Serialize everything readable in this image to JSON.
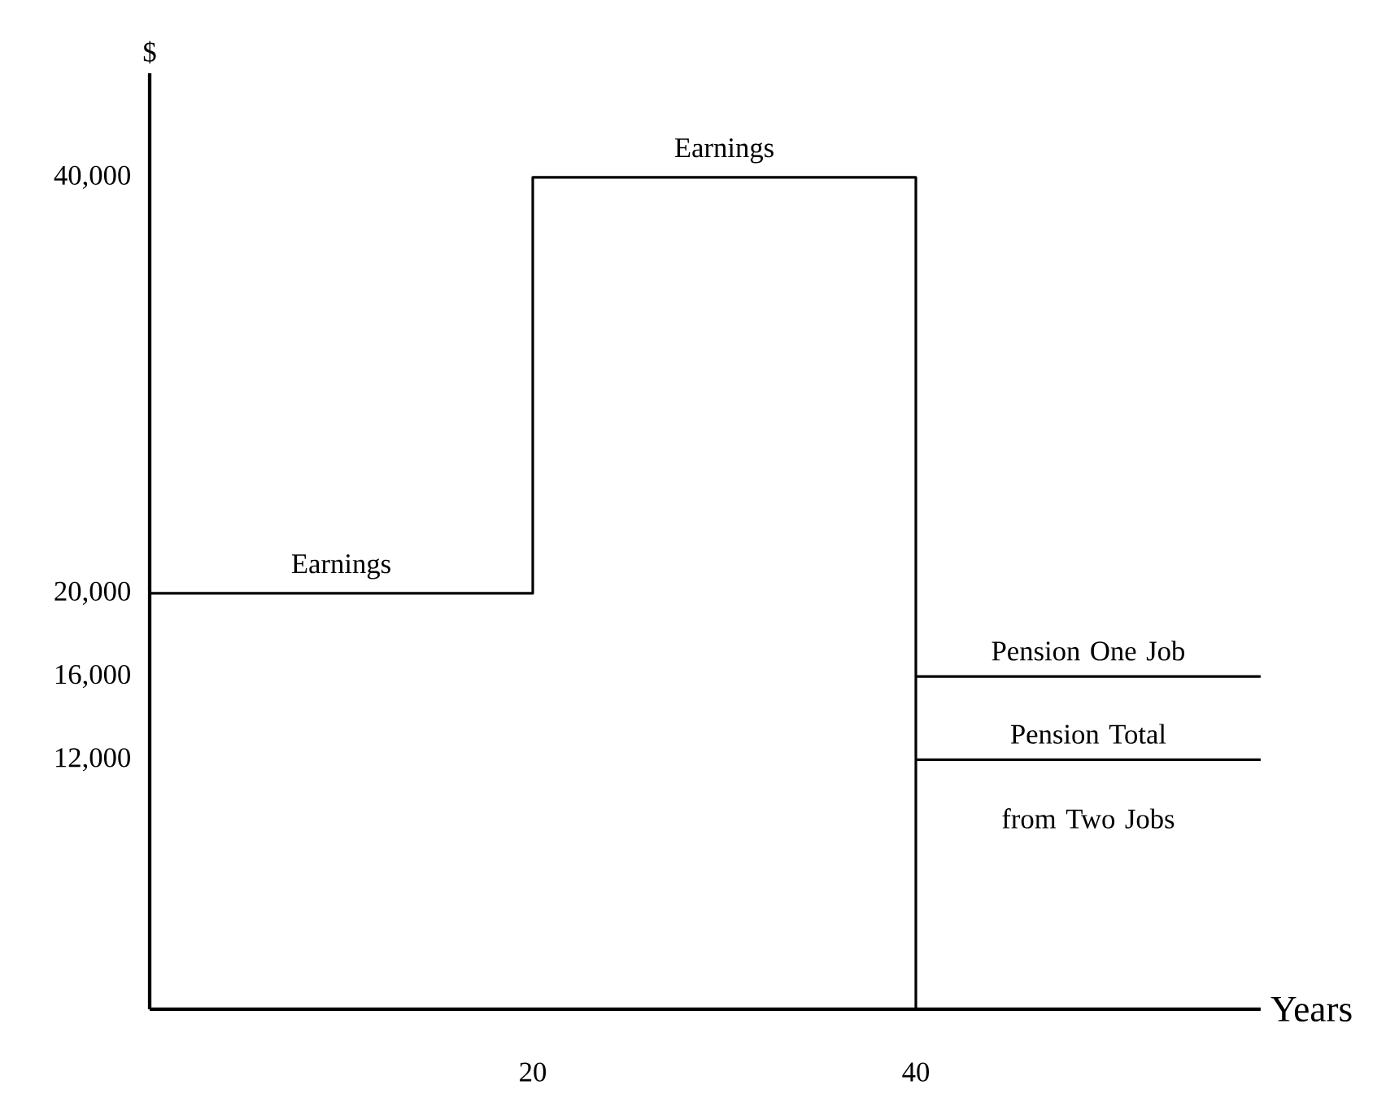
{
  "chart_data": {
    "type": "step",
    "ylabel": "$",
    "xlabel": "Years",
    "xlim": [
      0,
      58
    ],
    "xticks": [
      20,
      40
    ],
    "ylim": [
      0,
      45000
    ],
    "yticks": [
      {
        "value": 12000,
        "label": "12,000"
      },
      {
        "value": 16000,
        "label": "16,000"
      },
      {
        "value": 20000,
        "label": "20,000"
      },
      {
        "value": 40000,
        "label": "40,000"
      }
    ],
    "series": [
      {
        "color": "#000000",
        "x": [
          0,
          20,
          40,
          40
        ],
        "values": [
          20000,
          40000,
          40000,
          0
        ]
      },
      {
        "type": "line",
        "name": "Pension One Job",
        "color": "#000000",
        "x": [
          40,
          58
        ],
        "values": [
          16000,
          16000
        ]
      },
      {
        "type": "line",
        "name": "Pension Total from Two Jobs",
        "color": "#000000",
        "x": [
          40,
          58
        ],
        "values": [
          12000,
          12000
        ]
      }
    ],
    "annotations": [
      {
        "text": "Earnings",
        "x": 10,
        "y": 20000
      },
      {
        "text": "Earnings",
        "x": 30,
        "y": 40000
      }
    ]
  }
}
